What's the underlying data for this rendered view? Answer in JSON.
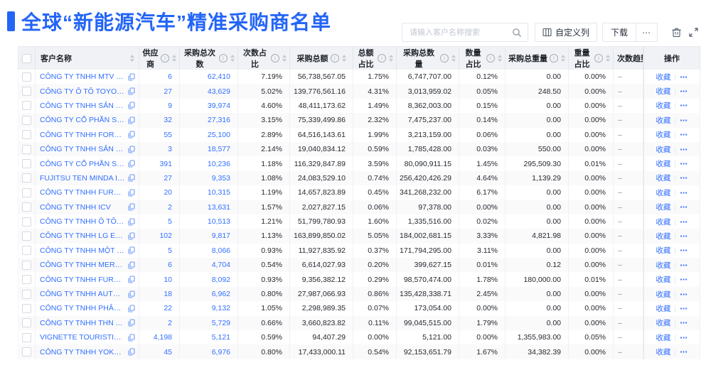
{
  "page": {
    "title": "全球“新能源汽车”精准采购商名单",
    "accent_color": "#2365f6",
    "link_color": "#3370ff"
  },
  "toolbar": {
    "search": {
      "placeholder": "请输入客户名称搜索",
      "icon": "search-icon"
    },
    "customize_columns_label": "自定义列",
    "download_label": "下载",
    "more_label": "⋯",
    "trash_icon": "trash-icon",
    "fullscreen_icon": "fullscreen-icon"
  },
  "table": {
    "columns": [
      {
        "key": "name",
        "label": "客户名称",
        "sortable": true,
        "info": false
      },
      {
        "key": "suppliers",
        "label": "供应商",
        "sortable": true,
        "info": true
      },
      {
        "key": "times",
        "label": "采购总次数",
        "sortable": true,
        "info": true
      },
      {
        "key": "times_pct",
        "label": "次数占比",
        "sortable": true,
        "info": true
      },
      {
        "key": "amount",
        "label": "采购总额",
        "sortable": true,
        "info": true
      },
      {
        "key": "amount_pct",
        "label": "总额占比",
        "sortable": true,
        "info": true
      },
      {
        "key": "qty",
        "label": "采购总数量",
        "sortable": true,
        "info": true
      },
      {
        "key": "qty_pct",
        "label": "数量占比",
        "sortable": true,
        "info": true
      },
      {
        "key": "weight",
        "label": "采购总重量",
        "sortable": true,
        "info": true
      },
      {
        "key": "weight_pct",
        "label": "重量占比",
        "sortable": true,
        "info": true
      },
      {
        "key": "trend",
        "label": "次数趋势",
        "sortable": false,
        "info": false
      },
      {
        "key": "action",
        "label": "操作",
        "sortable": false,
        "info": false
      }
    ],
    "action_labels": {
      "favorite": "收藏",
      "more": "⋯"
    },
    "trend_placeholder": "–",
    "rows": [
      {
        "name": "CÔNG TY TNHH MTV SẢN XUẤ...",
        "suppliers": "6",
        "times": "62,410",
        "times_pct": "7.19%",
        "amount": "56,738,567.05",
        "amount_pct": "1.75%",
        "qty": "6,747,707.00",
        "qty_pct": "0.12%",
        "weight": "0.00",
        "weight_pct": "0.00%"
      },
      {
        "name": "CÔNG TY Ô TÔ TOYOTA VIỆT ...",
        "suppliers": "27",
        "times": "43,629",
        "times_pct": "5.02%",
        "amount": "139,776,561.16",
        "amount_pct": "4.31%",
        "qty": "3,013,959.02",
        "qty_pct": "0.05%",
        "weight": "248.50",
        "weight_pct": "0.00%"
      },
      {
        "name": "CÔNG TY TNHH SẢN XUẤT VÀ ...",
        "suppliers": "9",
        "times": "39,974",
        "times_pct": "4.60%",
        "amount": "48,411,173.62",
        "amount_pct": "1.49%",
        "qty": "8,362,003.00",
        "qty_pct": "0.15%",
        "weight": "0.00",
        "weight_pct": "0.00%"
      },
      {
        "name": "CÔNG TY CỔ PHẦN SẢN XUẤT...",
        "suppliers": "32",
        "times": "27,316",
        "times_pct": "3.15%",
        "amount": "75,339,499.86",
        "amount_pct": "2.32%",
        "qty": "7,475,237.00",
        "qty_pct": "0.14%",
        "weight": "0.00",
        "weight_pct": "0.00%"
      },
      {
        "name": "CÔNG TY TNHH FORD VIỆT NAM",
        "suppliers": "55",
        "times": "25,100",
        "times_pct": "2.89%",
        "amount": "64,516,143.61",
        "amount_pct": "1.99%",
        "qty": "3,213,159.00",
        "qty_pct": "0.06%",
        "weight": "0.00",
        "weight_pct": "0.00%"
      },
      {
        "name": "CÔNG TY TNHH SẢN XUẤT VÀ ...",
        "suppliers": "3",
        "times": "18,577",
        "times_pct": "2.14%",
        "amount": "19,040,834.12",
        "amount_pct": "0.59%",
        "qty": "1,785,428.00",
        "qty_pct": "0.03%",
        "weight": "550.00",
        "weight_pct": "0.00%"
      },
      {
        "name": "CÔNG TY CỔ PHẦN SẢN XUẤT...",
        "suppliers": "391",
        "times": "10,236",
        "times_pct": "1.18%",
        "amount": "116,329,847.89",
        "amount_pct": "3.59%",
        "qty": "80,090,911.15",
        "qty_pct": "1.45%",
        "weight": "295,509.30",
        "weight_pct": "0.01%"
      },
      {
        "name": "FUJITSU TEN MINDA INDIA PVT...",
        "suppliers": "27",
        "times": "9,353",
        "times_pct": "1.08%",
        "amount": "24,083,529.10",
        "amount_pct": "0.74%",
        "qty": "256,420,426.29",
        "qty_pct": "4.64%",
        "weight": "1,139.29",
        "weight_pct": "0.00%"
      },
      {
        "name": "CÔNG TY TNHH FURUKAWA A...",
        "suppliers": "20",
        "times": "10,315",
        "times_pct": "1.19%",
        "amount": "14,657,823.89",
        "amount_pct": "0.45%",
        "qty": "341,268,232.00",
        "qty_pct": "6.17%",
        "weight": "0.00",
        "weight_pct": "0.00%"
      },
      {
        "name": "CÔNG TY TNHH ICV",
        "suppliers": "2",
        "times": "13,631",
        "times_pct": "1.57%",
        "amount": "2,027,827.15",
        "amount_pct": "0.06%",
        "qty": "97,378.00",
        "qty_pct": "0.00%",
        "weight": "0.00",
        "weight_pct": "0.00%"
      },
      {
        "name": "CÔNG TY TNHH Ô TÔ MITSUBI...",
        "suppliers": "5",
        "times": "10,513",
        "times_pct": "1.21%",
        "amount": "51,799,780.93",
        "amount_pct": "1.60%",
        "qty": "1,335,516.00",
        "qty_pct": "0.02%",
        "weight": "0.00",
        "weight_pct": "0.00%"
      },
      {
        "name": "CÔNG TY TNHH LG ELECTRON...",
        "suppliers": "102",
        "times": "9,817",
        "times_pct": "1.13%",
        "amount": "163,899,850.02",
        "amount_pct": "5.05%",
        "qty": "184,002,681.15",
        "qty_pct": "3.33%",
        "weight": "4,821.98",
        "weight_pct": "0.00%"
      },
      {
        "name": "CÔNG TY TNHH MỘT THÀNH V...",
        "suppliers": "5",
        "times": "8,066",
        "times_pct": "0.93%",
        "amount": "11,927,835.92",
        "amount_pct": "0.37%",
        "qty": "171,794,295.00",
        "qty_pct": "3.11%",
        "weight": "0.00",
        "weight_pct": "0.00%"
      },
      {
        "name": "CÔNG TY TNHH MERCEDES-B...",
        "suppliers": "6",
        "times": "4,704",
        "times_pct": "0.54%",
        "amount": "6,614,027.93",
        "amount_pct": "0.20%",
        "qty": "399,627.15",
        "qty_pct": "0.01%",
        "weight": "0.12",
        "weight_pct": "0.00%"
      },
      {
        "name": "CÔNG TY TNHH FURUKAWA A...",
        "suppliers": "10",
        "times": "8,092",
        "times_pct": "0.93%",
        "amount": "9,356,382.12",
        "amount_pct": "0.29%",
        "qty": "98,570,474.00",
        "qty_pct": "1.78%",
        "weight": "180,000.00",
        "weight_pct": "0.01%"
      },
      {
        "name": "CÔNG TY TNHH AUTEL VIỆT N...",
        "suppliers": "18",
        "times": "6,962",
        "times_pct": "0.80%",
        "amount": "27,987,066.93",
        "amount_pct": "0.86%",
        "qty": "135,428,338.71",
        "qty_pct": "2.45%",
        "weight": "0.00",
        "weight_pct": "0.00%"
      },
      {
        "name": "CÔNG TY TNHH PHÂN PHỐI T...",
        "suppliers": "22",
        "times": "9,132",
        "times_pct": "1.05%",
        "amount": "2,298,989.35",
        "amount_pct": "0.07%",
        "qty": "173,054.00",
        "qty_pct": "0.00%",
        "weight": "0.00",
        "weight_pct": "0.00%"
      },
      {
        "name": "CÔNG TY TNHH THN AUTOPAR...",
        "suppliers": "2",
        "times": "5,729",
        "times_pct": "0.66%",
        "amount": "3,660,823.82",
        "amount_pct": "0.11%",
        "qty": "99,045,515.00",
        "qty_pct": "1.79%",
        "weight": "0.00",
        "weight_pct": "0.00%"
      },
      {
        "name": "VIGNETTE TOURISTIQUE G UNI...",
        "suppliers": "4,198",
        "times": "5,121",
        "times_pct": "0.59%",
        "amount": "94,407.29",
        "amount_pct": "0.00%",
        "qty": "5,121.00",
        "qty_pct": "0.00%",
        "weight": "1,355,983.00",
        "weight_pct": "0.05%"
      },
      {
        "name": "CÔNG TY TNHH YOKOWO VIỆT...",
        "suppliers": "45",
        "times": "6,976",
        "times_pct": "0.80%",
        "amount": "17,433,000.11",
        "amount_pct": "0.54%",
        "qty": "92,153,651.79",
        "qty_pct": "1.67%",
        "weight": "34,382.39",
        "weight_pct": "0.00%"
      }
    ]
  }
}
